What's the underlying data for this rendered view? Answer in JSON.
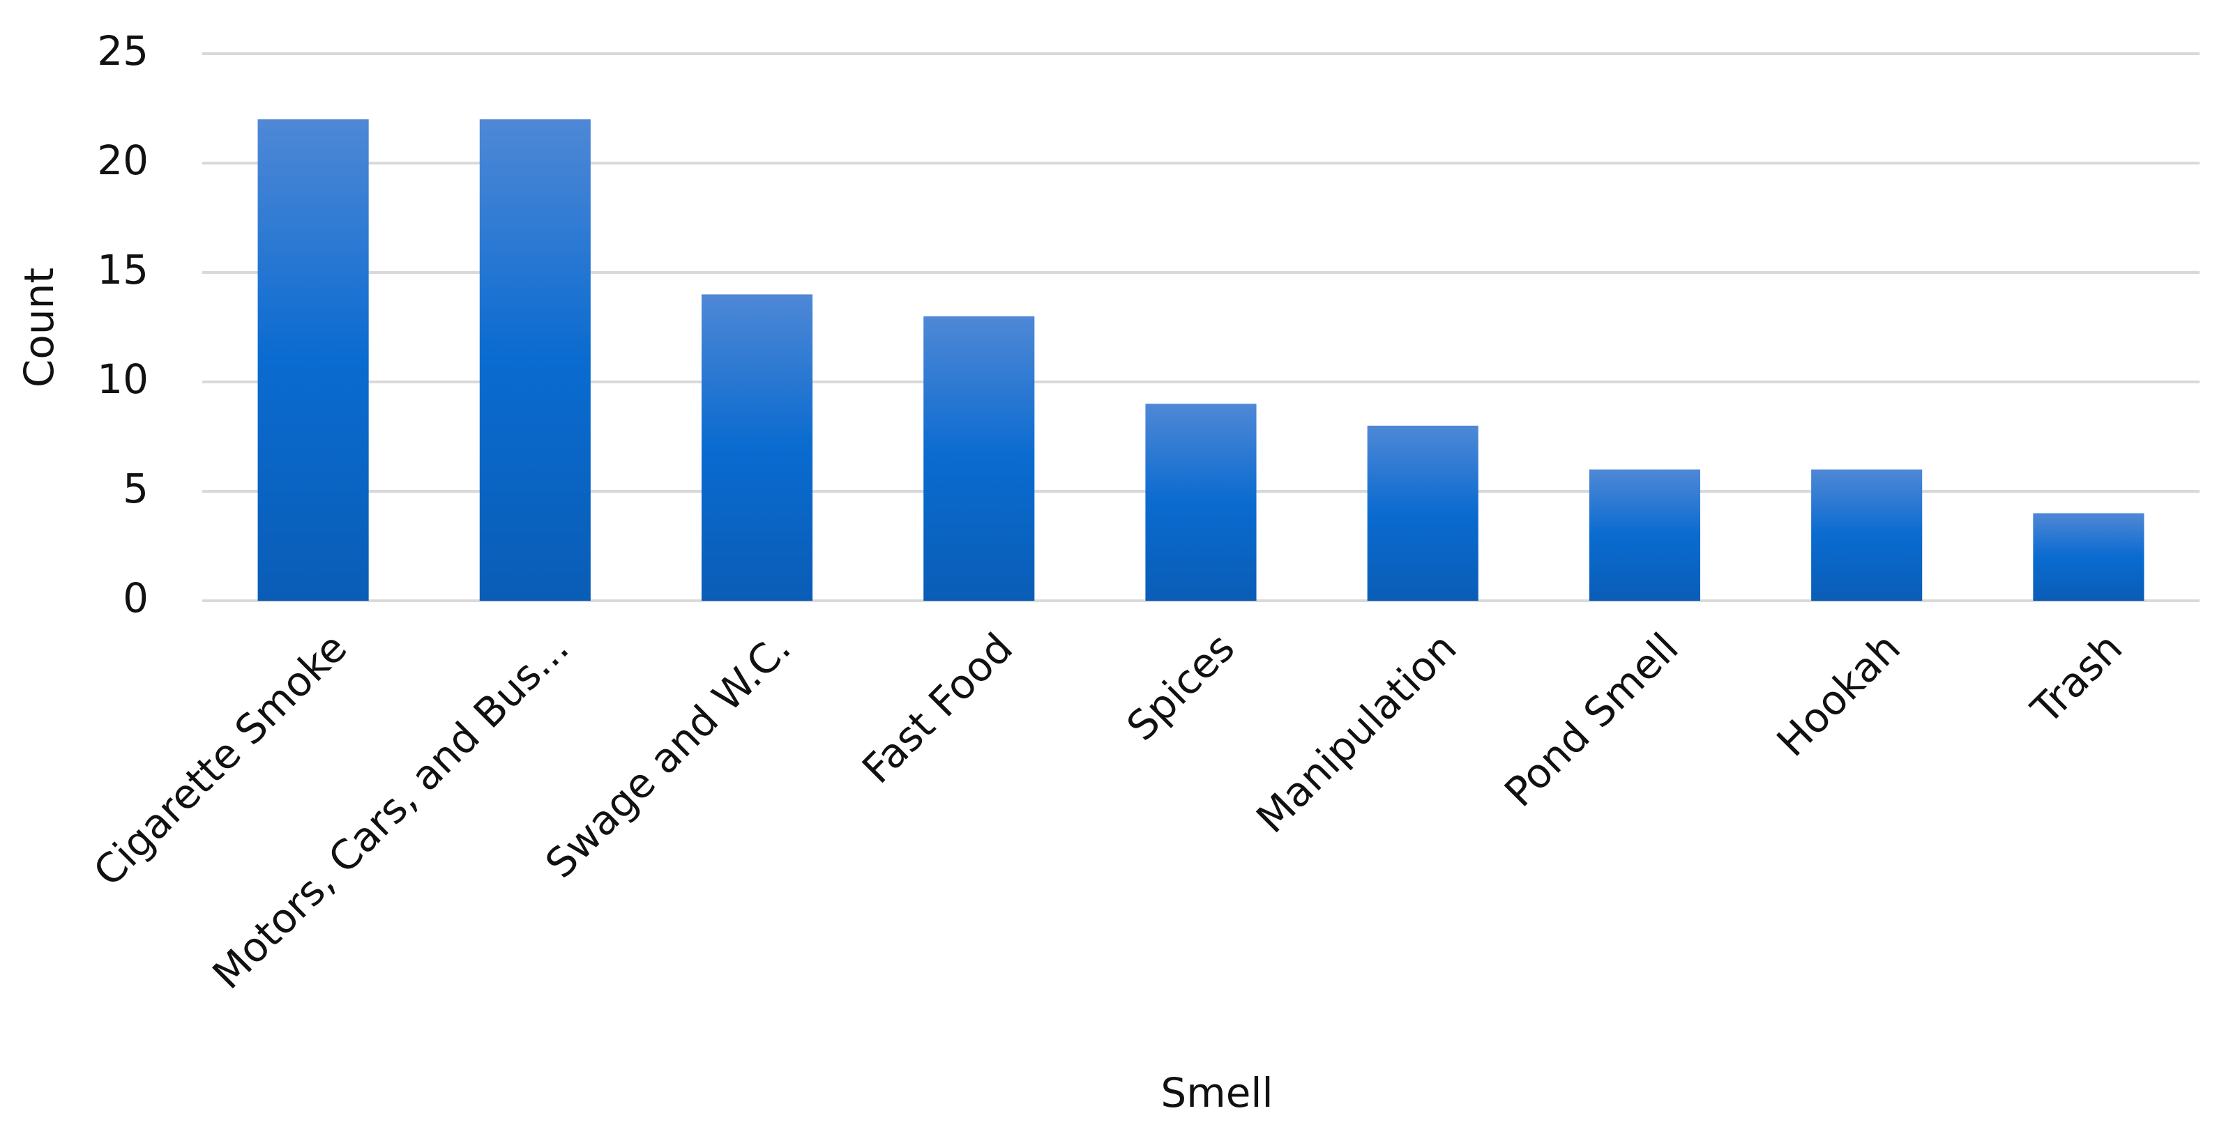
{
  "chart_data": {
    "type": "bar",
    "categories": [
      "Cigarette Smoke",
      "Motors, Cars, and Bus...",
      "Swage and W.C.",
      "Fast Food",
      "Spices",
      "Manipulation",
      "Pond Smell",
      "Hookah",
      "Trash"
    ],
    "values": [
      22,
      22,
      14,
      13,
      9,
      8,
      6,
      6,
      4
    ],
    "color": "#0a6bd0",
    "x_label": "Smell",
    "y_label": "Count",
    "ylim": [
      0,
      25
    ],
    "yticks": [
      0,
      5,
      10,
      15,
      20,
      25
    ],
    "grid": true
  }
}
